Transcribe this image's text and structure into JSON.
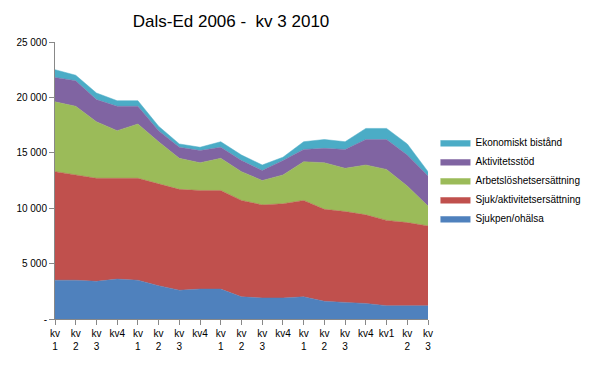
{
  "chart_data": {
    "type": "area",
    "title": "Dals-Ed 2006 -  kv 3 2010",
    "stacked": true,
    "grid": false,
    "legend": "right",
    "categories": [
      "kv 1",
      "kv 2",
      "kv 3",
      "kv4",
      "kv 1",
      "kv 2",
      "kv 3",
      "kv4",
      "kv 1",
      "kv 2",
      "kv 3",
      "kv4",
      "kv 1",
      "kv 2",
      "kv 3",
      "kv4",
      "kv1",
      "kv 2",
      "kv 3"
    ],
    "ylim": [
      0,
      25000
    ],
    "yticks": [
      {
        "value": 0,
        "label": "-"
      },
      {
        "value": 5000,
        "label": "5 000"
      },
      {
        "value": 10000,
        "label": "10 000"
      },
      {
        "value": 15000,
        "label": "15 000"
      },
      {
        "value": 20000,
        "label": "20 000"
      },
      {
        "value": 25000,
        "label": "25 000"
      }
    ],
    "series": [
      {
        "name": "Sjukpen/ohälsa",
        "color": "#4f81bd",
        "values": [
          3500,
          3500,
          3400,
          3600,
          3500,
          3000,
          2600,
          2700,
          2700,
          2000,
          1900,
          1900,
          2000,
          1600,
          1500,
          1400,
          1200,
          1200,
          1200
        ]
      },
      {
        "name": "Sjuk/aktivitetsersättning",
        "color": "#c0504d",
        "values": [
          9800,
          9500,
          9300,
          9100,
          9200,
          9200,
          9100,
          8900,
          8900,
          8700,
          8400,
          8500,
          8700,
          8300,
          8200,
          8000,
          7700,
          7500,
          7200
        ]
      },
      {
        "name": "Arbetslöshetsersättning",
        "color": "#9bbb59",
        "values": [
          6300,
          6200,
          5100,
          4300,
          4900,
          3800,
          2800,
          2500,
          2900,
          2600,
          2200,
          2600,
          3500,
          4200,
          3900,
          4500,
          4600,
          3300,
          1800
        ]
      },
      {
        "name": "Aktivitetsstöd",
        "color": "#8064a2",
        "values": [
          2200,
          2300,
          2000,
          2200,
          1600,
          1000,
          1000,
          1100,
          1000,
          1000,
          900,
          1300,
          1100,
          1300,
          1700,
          2300,
          2700,
          2800,
          2700
        ]
      },
      {
        "name": "Ekonomiskt bistånd",
        "color": "#4bacc6",
        "values": [
          700,
          500,
          600,
          500,
          500,
          400,
          300,
          300,
          500,
          500,
          500,
          300,
          700,
          800,
          700,
          1000,
          1000,
          1000,
          400
        ]
      }
    ]
  }
}
